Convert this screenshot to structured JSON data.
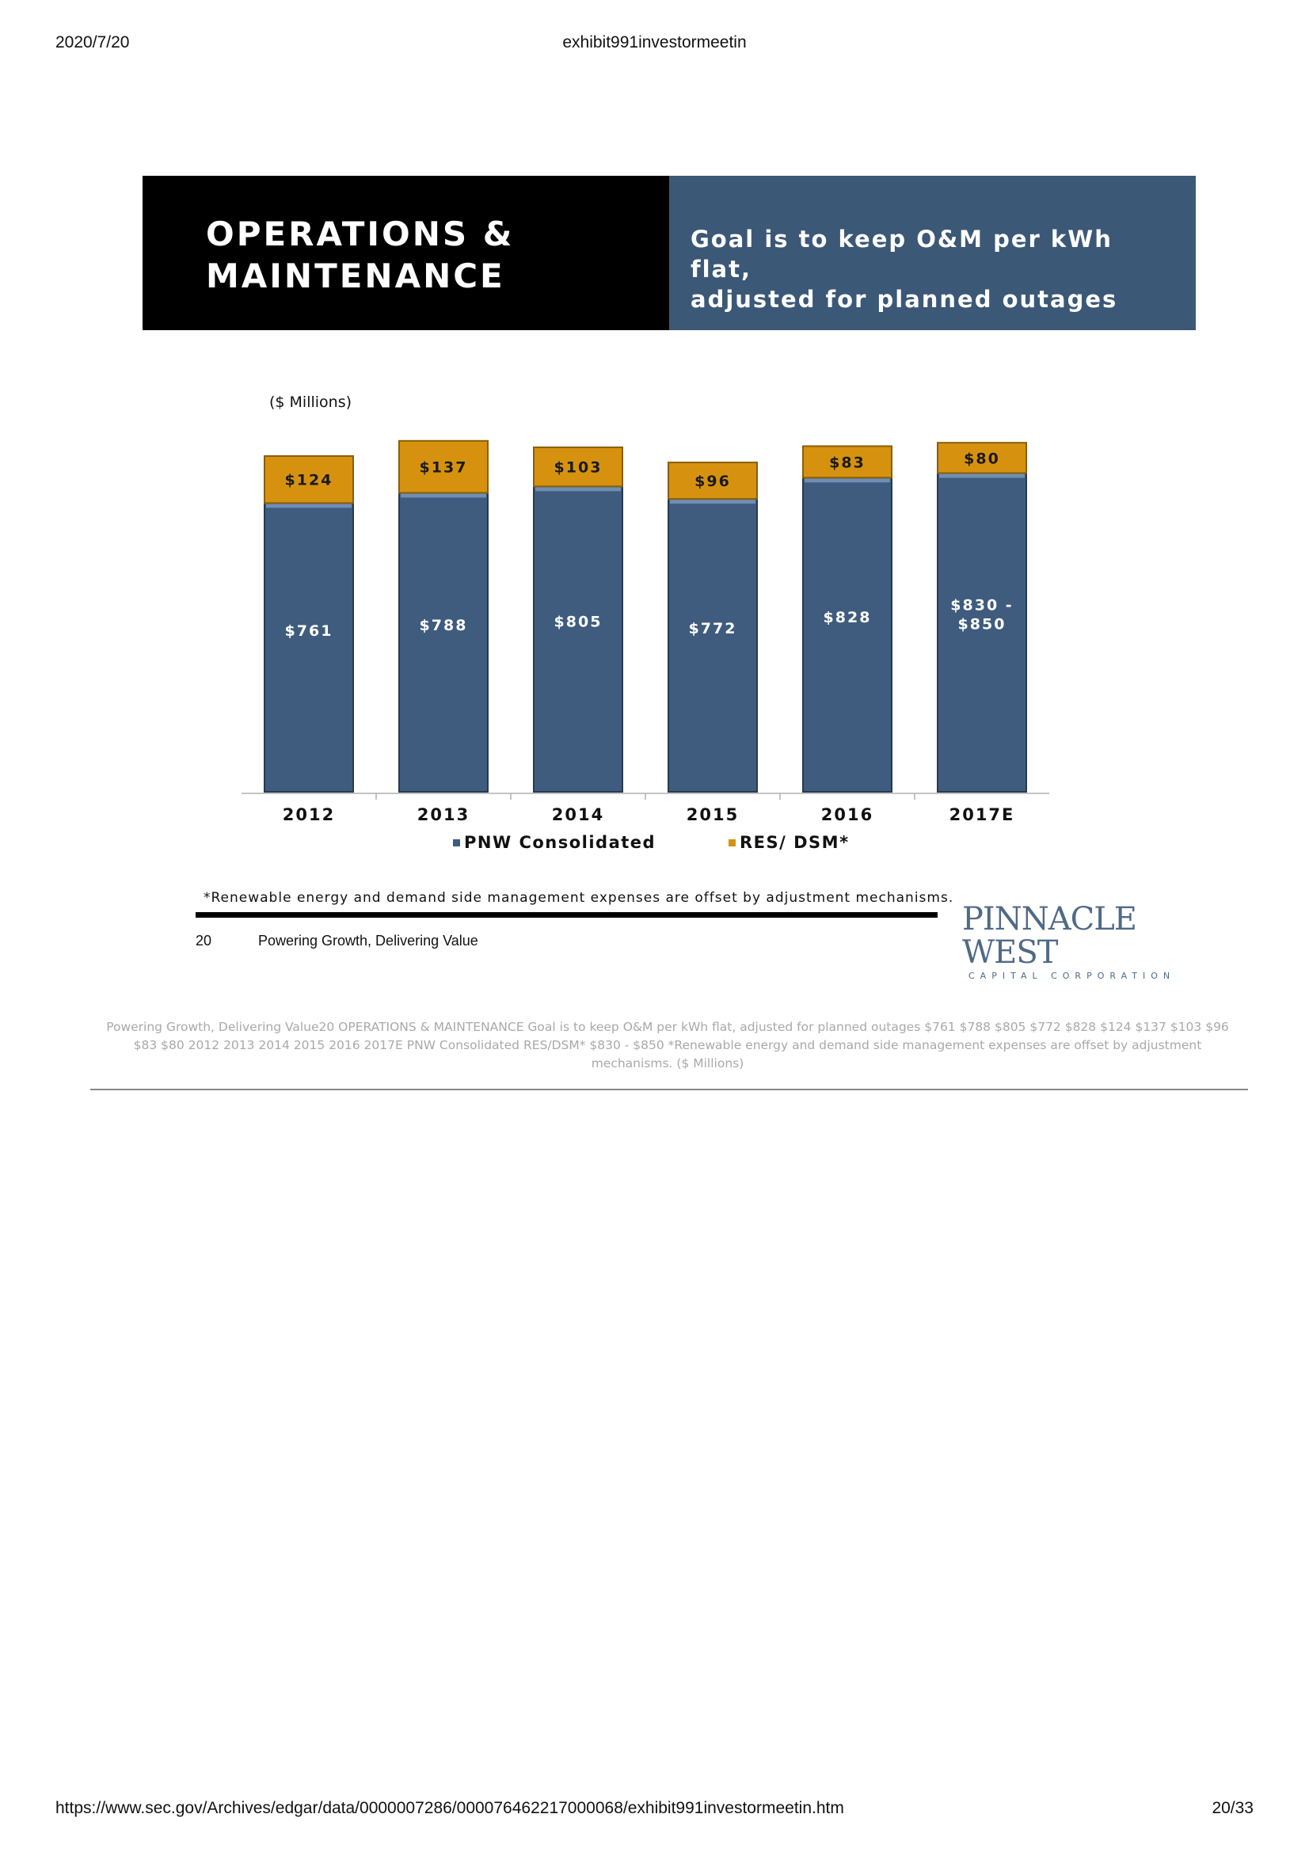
{
  "header": {
    "date": "2020/7/20",
    "doc_title": "exhibit991investormeetin"
  },
  "banner": {
    "title_line1": "OPERATIONS &",
    "title_line2": "MAINTENANCE",
    "goal_line1": "Goal is to keep O&M per kWh flat,",
    "goal_line2": "adjusted for planned outages"
  },
  "chart_data": {
    "type": "bar",
    "stacked": true,
    "title": "",
    "unit_label": "($ Millions)",
    "categories": [
      "2012",
      "2013",
      "2014",
      "2015",
      "2016",
      "2017E"
    ],
    "series": [
      {
        "name": "PNW Consolidated",
        "color": "#3f5c7f",
        "values": [
          761,
          788,
          805,
          772,
          828,
          840
        ]
      },
      {
        "name": "RES/ DSM*",
        "color": "#d6920f",
        "values": [
          124,
          137,
          103,
          96,
          83,
          80
        ]
      }
    ],
    "value_labels": {
      "PNW Consolidated": [
        "$761",
        "$788",
        "$805",
        "$772",
        "$828",
        "$830 -\n$850"
      ],
      "RES/ DSM*": [
        "$124",
        "$137",
        "$103",
        "$96",
        "$83",
        "$80"
      ]
    },
    "grid": false,
    "legend_position": "bottom"
  },
  "footnote": "*Renewable energy and demand side management expenses are offset by adjustment mechanisms.",
  "slide_footer": {
    "page_number": "20",
    "tagline": "Powering Growth, Delivering Value"
  },
  "logo": {
    "name": "PINNACLE WEST",
    "subtitle": "CAPITAL CORPORATION"
  },
  "alt_text": "Powering Growth, Delivering Value20 OPERATIONS & MAINTENANCE Goal is to keep O&M per kWh flat, adjusted for planned outages $761 $788 $805 $772 $828 $124 $137 $103 $96 $83 $80 2012 2013 2014 2015 2016 2017E PNW Consolidated RES/DSM* $830 - $850 *Renewable energy and demand side management expenses are offset by adjustment mechanisms. ($ Millions)",
  "footer": {
    "url": "https://www.sec.gov/Archives/edgar/data/0000007286/000076462217000068/exhibit991investormeetin.htm",
    "page": "20/33"
  }
}
